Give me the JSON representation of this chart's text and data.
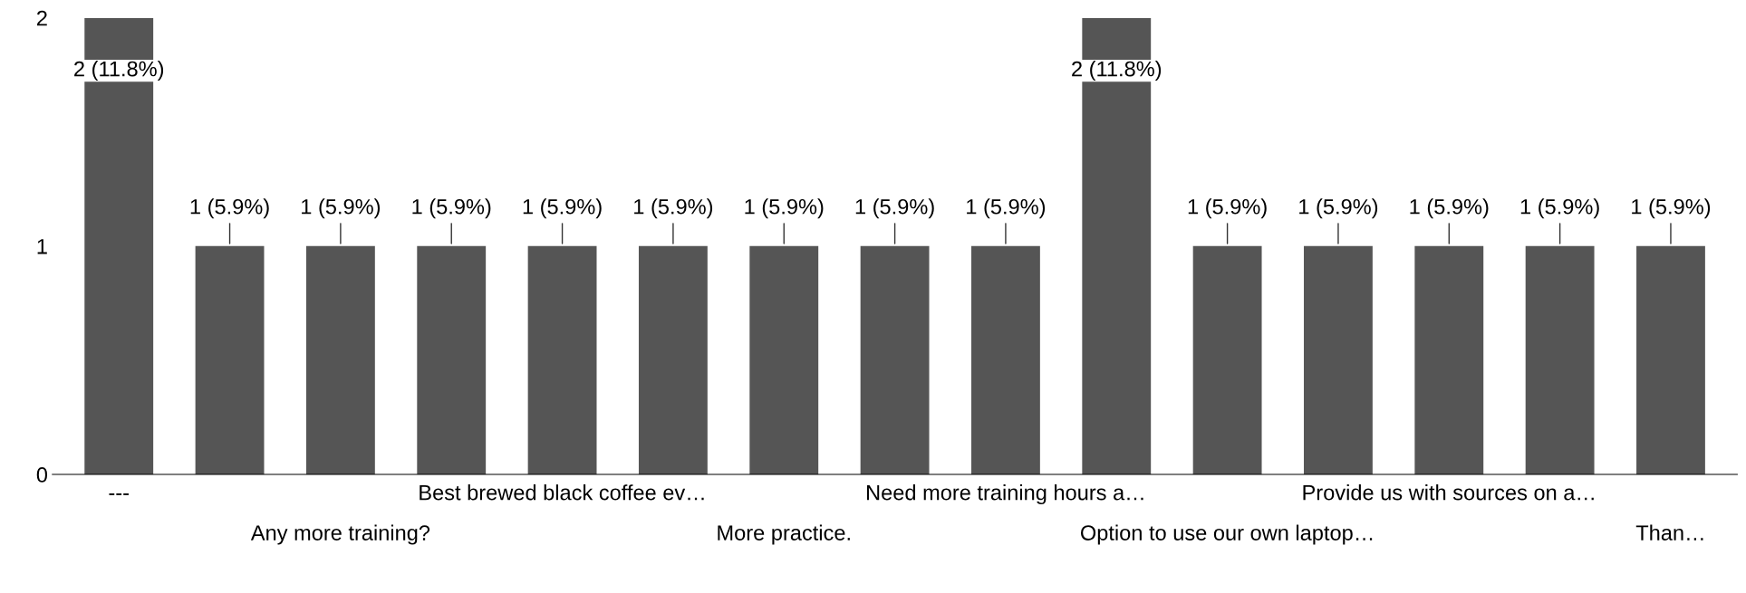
{
  "chart_data": {
    "type": "bar",
    "categories": [
      "---",
      null,
      "Any more training?",
      null,
      "Best brewed black coffee ev…",
      null,
      "More practice.",
      null,
      "Need more training hours a…",
      null,
      "Option to use our own laptop…",
      null,
      "Provide us with sources on a…",
      null,
      "Than…"
    ],
    "values": [
      2,
      1,
      1,
      1,
      1,
      1,
      1,
      1,
      1,
      2,
      1,
      1,
      1,
      1,
      1
    ],
    "value_labels": [
      "2 (11.8%)",
      "1 (5.9%)",
      "1 (5.9%)",
      "1 (5.9%)",
      "1 (5.9%)",
      "1 (5.9%)",
      "1 (5.9%)",
      "1 (5.9%)",
      "1 (5.9%)",
      "2 (11.8%)",
      "1 (5.9%)",
      "1 (5.9%)",
      "1 (5.9%)",
      "1 (5.9%)",
      "1 (5.9%)"
    ],
    "color": "#555555",
    "ylim": [
      0,
      2
    ],
    "yticks": [
      0,
      1,
      2
    ],
    "grid": false,
    "legend": false
  }
}
